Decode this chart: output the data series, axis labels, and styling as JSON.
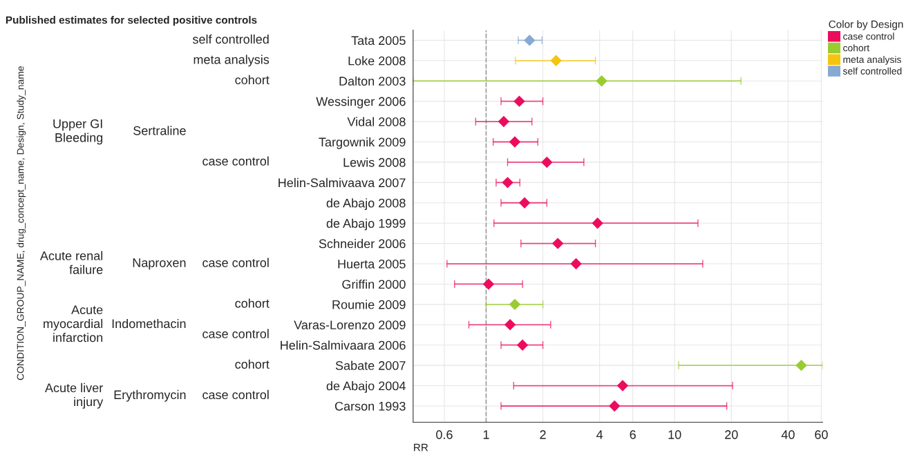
{
  "chart_data": {
    "type": "scatter",
    "orientation": "horizontal",
    "title": "Published estimates for selected positive controls",
    "xlabel": "RR",
    "legend_title": "Color by Design",
    "categories": [
      "Tata 2005",
      "Loke 2008",
      "Dalton 2003",
      "Wessinger 2006",
      "Vidal 2008",
      "Targownik 2009",
      "Lewis 2008",
      "Helin-Salmivaava 2007",
      "de Abajo 2008",
      "de Abajo 1999",
      "Schneider 2006",
      "Huerta 2005",
      "Griffin 2000",
      "Roumie 2009",
      "Varas-Lorenzo 2009",
      "Helin-Salmivaara 2006",
      "Sabate 2007",
      "de Abajo 2004",
      "Carson 1993"
    ],
    "series": [
      {
        "name": "case control",
        "color": "#ec0c5e",
        "values": [
          null,
          null,
          null,
          1.5,
          1.24,
          1.42,
          2.1,
          1.3,
          1.6,
          3.9,
          2.4,
          3.0,
          1.03,
          null,
          1.34,
          1.56,
          null,
          5.3,
          4.8
        ],
        "errors": [
          null,
          null,
          null,
          [
            1.2,
            2.0
          ],
          [
            0.88,
            1.75
          ],
          [
            1.09,
            1.88
          ],
          [
            1.3,
            3.3
          ],
          [
            1.13,
            1.51
          ],
          [
            1.2,
            2.1
          ],
          [
            1.1,
            13.3
          ],
          [
            1.53,
            3.8
          ],
          [
            0.62,
            14.1
          ],
          [
            0.68,
            1.56
          ],
          null,
          [
            0.81,
            2.2
          ],
          [
            1.2,
            2.0
          ],
          null,
          [
            1.4,
            20.3
          ],
          [
            1.2,
            18.9
          ]
        ]
      },
      {
        "name": "cohort",
        "color": "#99cc2e",
        "values": [
          null,
          null,
          4.1,
          null,
          null,
          null,
          null,
          null,
          null,
          null,
          null,
          null,
          null,
          1.42,
          null,
          null,
          47,
          null,
          null
        ],
        "errors": [
          null,
          null,
          [
            0.41,
            22.5
          ],
          null,
          null,
          null,
          null,
          null,
          null,
          null,
          null,
          null,
          null,
          [
            1.0,
            2.0
          ],
          null,
          null,
          [
            10.5,
            61
          ],
          null,
          null
        ]
      },
      {
        "name": "meta analysis",
        "color": "#f5c40f",
        "values": [
          null,
          2.35,
          null,
          null,
          null,
          null,
          null,
          null,
          null,
          null,
          null,
          null,
          null,
          null,
          null,
          null,
          null,
          null,
          null
        ],
        "errors": [
          null,
          [
            1.43,
            3.8
          ],
          null,
          null,
          null,
          null,
          null,
          null,
          null,
          null,
          null,
          null,
          null,
          null,
          null,
          null,
          null,
          null,
          null
        ]
      },
      {
        "name": "self controlled",
        "color": "#86aad2",
        "values": [
          1.7,
          null,
          null,
          null,
          null,
          null,
          null,
          null,
          null,
          null,
          null,
          null,
          null,
          null,
          null,
          null,
          null,
          null,
          null
        ],
        "errors": [
          [
            1.48,
            1.98
          ],
          null,
          null,
          null,
          null,
          null,
          null,
          null,
          null,
          null,
          null,
          null,
          null,
          null,
          null,
          null,
          null,
          null,
          null
        ]
      }
    ],
    "annotations": [
      "CONDITION_GROUP_NAME, drug_concept_name, Design, Study_name",
      "Upper GI\nBleeding",
      "Acute renal\nfailure",
      "Acute\nmyocardial\ninfarction",
      "Acute liver\ninjury",
      "Sertraline",
      "Naproxen",
      "Indomethacin",
      "Erythromycin",
      "self controlled",
      "meta analysis",
      "cohort",
      "case control",
      "case control",
      "cohort",
      "case control",
      "cohort",
      "case control"
    ],
    "ref_lines": [
      {
        "axis": "x",
        "value": 1,
        "color": "#999999",
        "line_style": "dashed"
      }
    ],
    "log": "x",
    "xlim": [
      0.41,
      61
    ],
    "xticks": [
      0.6,
      1,
      2,
      4,
      6,
      10,
      20,
      40,
      60
    ],
    "grid": true,
    "legend": "top right",
    "marker": "diamond"
  }
}
